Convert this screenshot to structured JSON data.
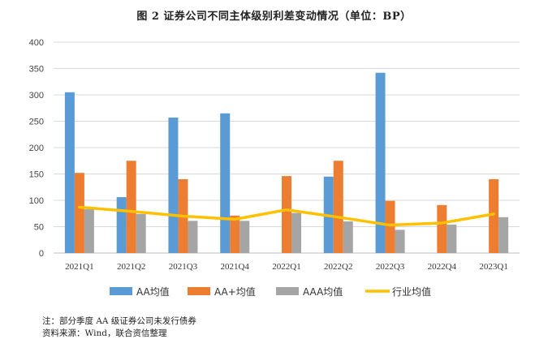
{
  "notes": {
    "note": "注：部分季度 AA 级证券公司未发行债券",
    "source": "资料来源：Wind，联合资信整理"
  },
  "chart_data": {
    "type": "bar",
    "title": "图 2   证券公司不同主体级别利差变动情况（单位：BP）",
    "categories": [
      "2021Q1",
      "2021Q2",
      "2021Q3",
      "2021Q4",
      "2022Q1",
      "2022Q2",
      "2022Q3",
      "2022Q4",
      "2023Q1"
    ],
    "y_ticks": [
      "0",
      "50",
      "100",
      "150",
      "200",
      "250",
      "300",
      "350",
      "400"
    ],
    "ylim": [
      0,
      400
    ],
    "grid": true,
    "legend_position": "bottom",
    "series": [
      {
        "name": "AA均值",
        "type": "bar",
        "color": "#5b9bd5",
        "values": [
          305,
          106,
          257,
          265,
          null,
          145,
          342,
          null,
          null
        ]
      },
      {
        "name": "AA+均值",
        "type": "bar",
        "color": "#ed7d31",
        "values": [
          152,
          175,
          140,
          71,
          146,
          175,
          99,
          91,
          140
        ]
      },
      {
        "name": "AAA均值",
        "type": "bar",
        "color": "#a5a5a5",
        "values": [
          83,
          74,
          61,
          61,
          76,
          60,
          44,
          54,
          68
        ]
      },
      {
        "name": "行业均值",
        "type": "line",
        "color": "#ffc000",
        "values": [
          87,
          79,
          70,
          64,
          82,
          68,
          53,
          57,
          74
        ]
      }
    ]
  }
}
